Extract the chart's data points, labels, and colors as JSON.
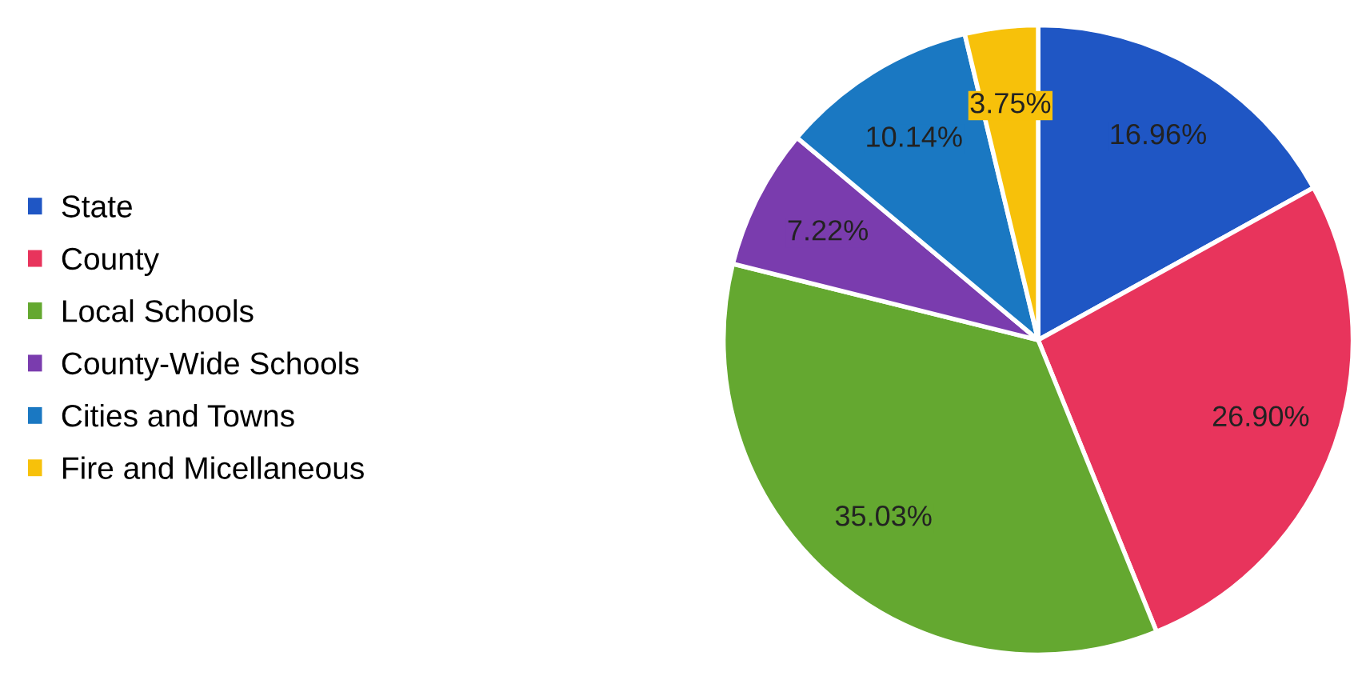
{
  "chart_data": {
    "type": "pie",
    "categories": [
      "State",
      "County",
      "Local Schools",
      "County-Wide Schools",
      "Cities and Towns",
      "Fire and Micellaneous"
    ],
    "values": [
      16.96,
      26.9,
      35.03,
      7.22,
      10.14,
      3.75
    ],
    "colors": [
      "#1f56c4",
      "#e8345c",
      "#64a830",
      "#7a3cae",
      "#1a78c2",
      "#f7c10a"
    ],
    "value_labels": [
      "16.96%",
      "26.90%",
      "35.03%",
      "7.22%",
      "10.14%",
      "3.75%"
    ],
    "legend": "left"
  }
}
